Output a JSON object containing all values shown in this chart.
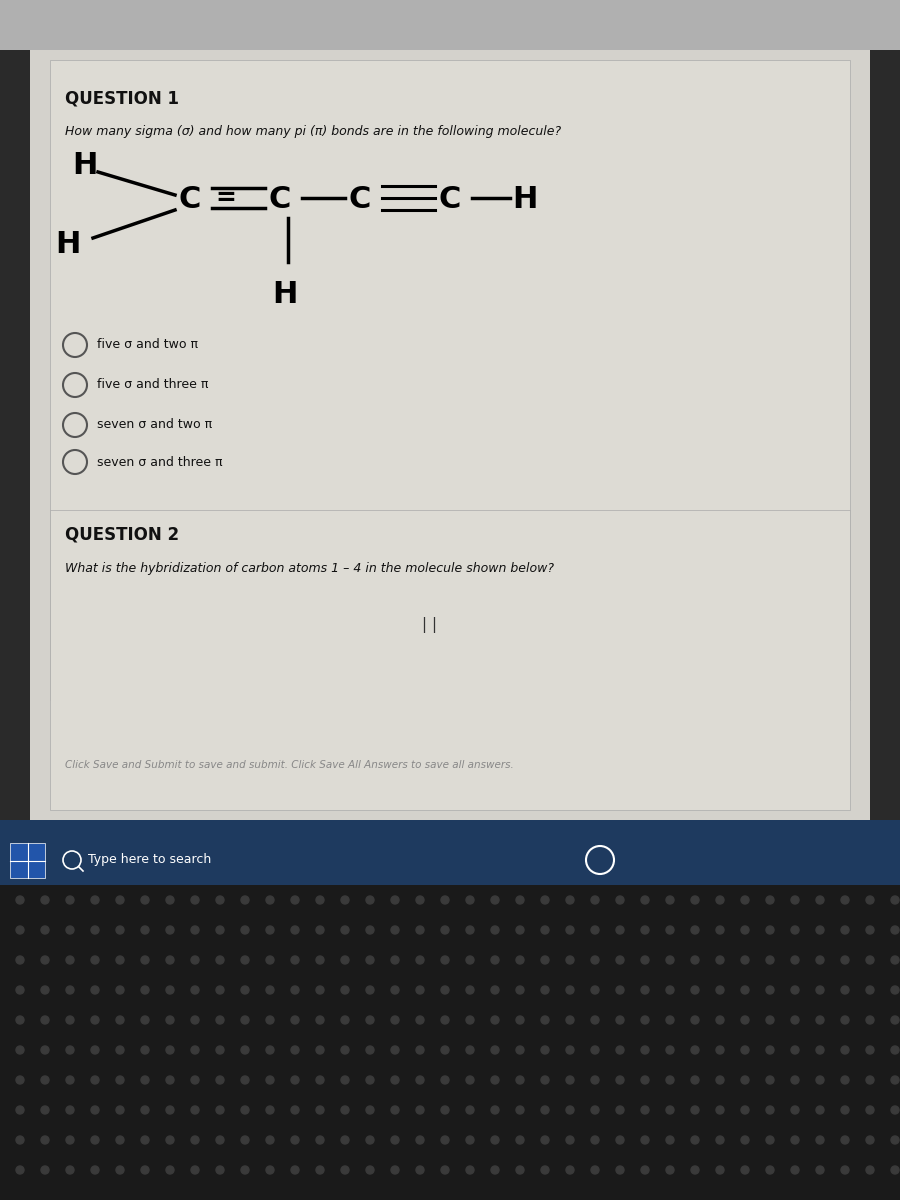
{
  "bg_top": "#c8c8c8",
  "bg_main": "#d0cfc8",
  "bg_bottom": "#1a1a1a",
  "bg_taskbar": "#1e3a5f",
  "text_color": "#000000",
  "question1_title": "QUESTION 1",
  "question1_text": "How many sigma (σ) and how many pi (π) bonds are in the following molecule?",
  "choices": [
    "five σ and two π",
    "five σ and three π",
    "seven σ and two π",
    "seven σ and three π"
  ],
  "question2_title": "QUESTION 2",
  "question2_text": "What is the hybridization of carbon atoms 1 – 4 in the molecule shown below?",
  "footer_text": "Click Save and Submit to save and submit. Click Save All Answers to save all answers.",
  "taskbar_text": "Type here to search"
}
